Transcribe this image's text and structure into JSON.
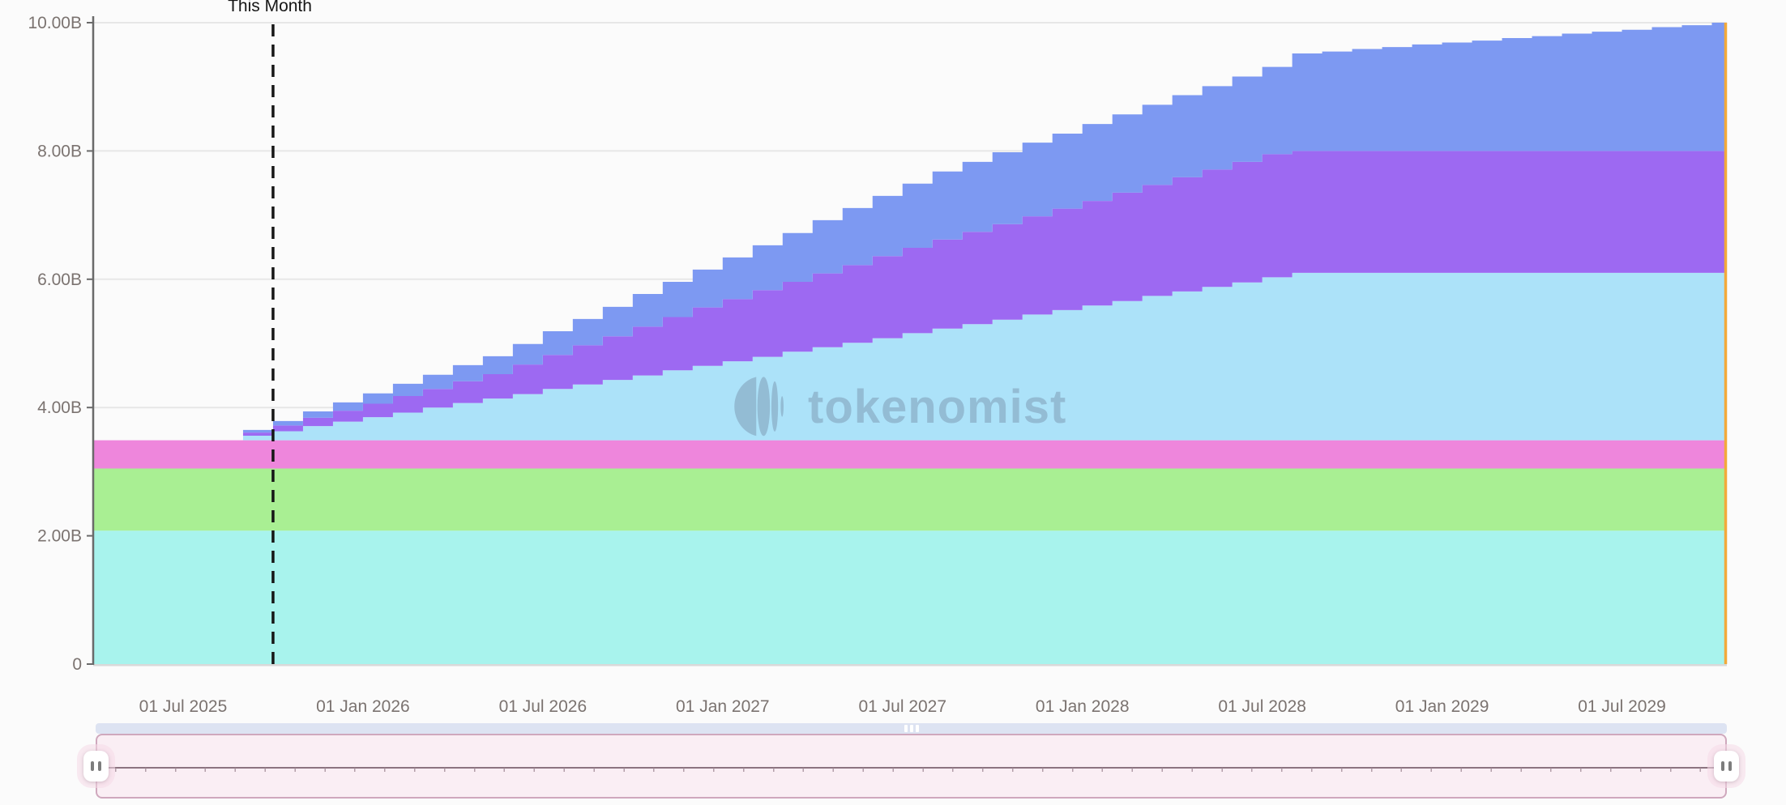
{
  "chart": {
    "annotation_label": "This Month",
    "watermark_text": "tokenomist",
    "accent_colors": {
      "end_line_orange": "#f2a93b",
      "annotation_line": "#161616",
      "axis_line": "#6a6a6a",
      "grid_line": "#e7e7e7",
      "baseline": "#d9d9d9",
      "tick_text": "#7b7370",
      "scrollbar_track": "#dde3f2",
      "brush_fill": "#faeef4",
      "brush_border": "#cfa8bd"
    }
  },
  "chart_data": {
    "type": "area",
    "variant": "stacked-step-cumulative",
    "title": "",
    "xlabel": "",
    "ylabel": "",
    "unit": "B = billions of tokens",
    "ylim": [
      0,
      10
    ],
    "grid": "horizontal",
    "legend_position": "none",
    "x_domain_months": 54.5,
    "x_months": [
      "2025-04",
      "2025-05",
      "2025-06",
      "2025-07",
      "2025-08",
      "2025-09",
      "2025-10",
      "2025-11",
      "2025-12",
      "2026-01",
      "2026-02",
      "2026-03",
      "2026-04",
      "2026-05",
      "2026-06",
      "2026-07",
      "2026-08",
      "2026-09",
      "2026-10",
      "2026-11",
      "2026-12",
      "2027-01",
      "2027-02",
      "2027-03",
      "2027-04",
      "2027-05",
      "2027-06",
      "2027-07",
      "2027-08",
      "2027-09",
      "2027-10",
      "2027-11",
      "2027-12",
      "2028-01",
      "2028-02",
      "2028-03",
      "2028-04",
      "2028-05",
      "2028-06",
      "2028-07",
      "2028-08",
      "2028-09",
      "2028-10",
      "2028-11",
      "2028-12",
      "2029-01",
      "2029-02",
      "2029-03",
      "2029-04",
      "2029-05",
      "2029-06",
      "2029-07",
      "2029-08",
      "2029-09",
      "2029-10"
    ],
    "x_ticks": [
      {
        "label": "01 Jul 2025",
        "month_index": 3
      },
      {
        "label": "01 Jan 2026",
        "month_index": 9
      },
      {
        "label": "01 Jul 2026",
        "month_index": 15
      },
      {
        "label": "01 Jan 2027",
        "month_index": 21
      },
      {
        "label": "01 Jul 2027",
        "month_index": 27
      },
      {
        "label": "01 Jan 2028",
        "month_index": 33
      },
      {
        "label": "01 Jul 2028",
        "month_index": 39
      },
      {
        "label": "01 Jan 2029",
        "month_index": 45
      },
      {
        "label": "01 Jul 2029",
        "month_index": 51
      }
    ],
    "y_ticks": [
      {
        "label": "0",
        "value": 0
      },
      {
        "label": "2.00B",
        "value": 2
      },
      {
        "label": "4.00B",
        "value": 4
      },
      {
        "label": "6.00B",
        "value": 6
      },
      {
        "label": "8.00B",
        "value": 8
      },
      {
        "label": "10.00B",
        "value": 10
      }
    ],
    "annotation": {
      "label": "This Month",
      "month_index": 6
    },
    "end_marker": {
      "color": "#f2a93b",
      "at_month_index": 54.5
    },
    "series": [
      {
        "name": "band-teal",
        "color": "#a8f3ed",
        "tops_constant": 2.08
      },
      {
        "name": "band-green",
        "color": "#a9ef93",
        "tops_constant": 3.05
      },
      {
        "name": "band-pink",
        "color": "#ee86dc",
        "tops_constant": 3.49
      },
      {
        "name": "band-sky-blue",
        "color": "#ace2f9",
        "tops": [
          3.49,
          3.49,
          3.49,
          3.49,
          3.49,
          3.56,
          3.63,
          3.71,
          3.78,
          3.85,
          3.92,
          4.0,
          4.07,
          4.14,
          4.21,
          4.29,
          4.36,
          4.43,
          4.5,
          4.58,
          4.65,
          4.72,
          4.79,
          4.87,
          4.94,
          5.01,
          5.08,
          5.16,
          5.23,
          5.3,
          5.37,
          5.45,
          5.52,
          5.59,
          5.66,
          5.74,
          5.81,
          5.88,
          5.95,
          6.03,
          6.1,
          6.1,
          6.1,
          6.1,
          6.1,
          6.1,
          6.1,
          6.1,
          6.1,
          6.1,
          6.1,
          6.1,
          6.1,
          6.1,
          6.1
        ]
      },
      {
        "name": "band-purple",
        "color": "#9d69f2",
        "tops": [
          3.49,
          3.49,
          3.49,
          3.49,
          3.49,
          3.61,
          3.72,
          3.84,
          3.95,
          4.06,
          4.18,
          4.29,
          4.41,
          4.52,
          4.67,
          4.82,
          4.97,
          5.11,
          5.26,
          5.41,
          5.56,
          5.69,
          5.83,
          5.96,
          6.09,
          6.22,
          6.36,
          6.49,
          6.62,
          6.74,
          6.86,
          6.98,
          7.1,
          7.22,
          7.35,
          7.47,
          7.59,
          7.71,
          7.83,
          7.95,
          8.0,
          8.0,
          8.0,
          8.0,
          8.0,
          8.0,
          8.0,
          8.0,
          8.0,
          8.0,
          8.0,
          8.0,
          8.0,
          8.0,
          8.0
        ]
      },
      {
        "name": "band-periwinkle",
        "color": "#7d99f2",
        "tops": [
          3.49,
          3.49,
          3.49,
          3.49,
          3.49,
          3.65,
          3.79,
          3.94,
          4.08,
          4.22,
          4.37,
          4.51,
          4.66,
          4.8,
          4.99,
          5.19,
          5.38,
          5.57,
          5.77,
          5.96,
          6.15,
          6.34,
          6.53,
          6.72,
          6.92,
          7.11,
          7.3,
          7.49,
          7.68,
          7.83,
          7.98,
          8.13,
          8.27,
          8.42,
          8.57,
          8.72,
          8.87,
          9.01,
          9.16,
          9.31,
          9.52,
          9.55,
          9.59,
          9.62,
          9.66,
          9.69,
          9.72,
          9.76,
          9.79,
          9.83,
          9.86,
          9.89,
          9.93,
          9.96,
          10.0
        ]
      }
    ]
  }
}
